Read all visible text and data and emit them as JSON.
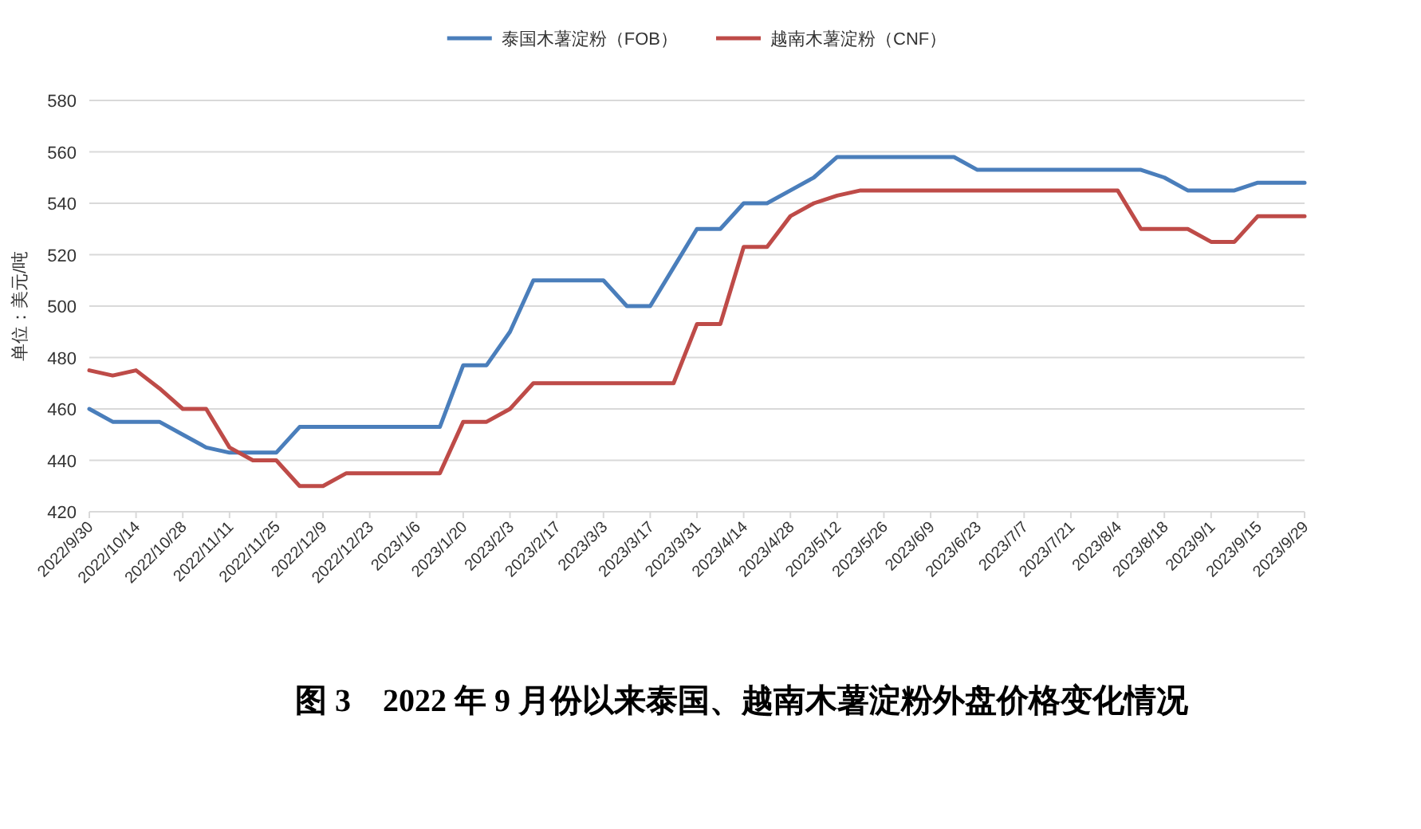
{
  "chart_data": {
    "type": "line",
    "title": "图 3　2022 年 9 月份以来泰国、越南木薯淀粉外盘价格变化情况",
    "ylabel": "单位：美元/吨",
    "categories": [
      "2022/9/30",
      null,
      "2022/10/14",
      null,
      "2022/10/28",
      null,
      "2022/11/11",
      null,
      "2022/11/25",
      null,
      "2022/12/9",
      null,
      "2022/12/23",
      null,
      "2023/1/6",
      null,
      "2023/1/20",
      null,
      "2023/2/3",
      null,
      "2023/2/17",
      null,
      "2023/3/3",
      null,
      "2023/3/17",
      null,
      "2023/3/31",
      null,
      "2023/4/14",
      null,
      "2023/4/28",
      null,
      "2023/5/12",
      null,
      "2023/5/26",
      null,
      "2023/6/9",
      null,
      "2023/6/23",
      null,
      "2023/7/7",
      null,
      "2023/7/21",
      null,
      "2023/8/4",
      null,
      "2023/8/18",
      null,
      "2023/9/1",
      null,
      "2023/9/15",
      null,
      "2023/9/29"
    ],
    "series": [
      {
        "name": "泰国木薯淀粉（FOB）",
        "color": "#4a7ebb",
        "values": [
          460,
          455,
          455,
          455,
          450,
          445,
          443,
          443,
          443,
          453,
          453,
          453,
          453,
          453,
          453,
          453,
          477,
          477,
          490,
          510,
          510,
          510,
          510,
          500,
          500,
          515,
          530,
          530,
          540,
          540,
          545,
          550,
          558,
          558,
          558,
          558,
          558,
          558,
          553,
          553,
          553,
          553,
          553,
          553,
          553,
          553,
          550,
          545,
          545,
          545,
          548,
          548,
          548
        ]
      },
      {
        "name": "越南木薯淀粉（CNF）",
        "color": "#be4b48",
        "values": [
          475,
          473,
          475,
          468,
          460,
          460,
          445,
          440,
          440,
          430,
          430,
          435,
          435,
          435,
          435,
          435,
          455,
          455,
          460,
          470,
          470,
          470,
          470,
          470,
          470,
          470,
          493,
          493,
          523,
          523,
          535,
          540,
          543,
          545,
          545,
          545,
          545,
          545,
          545,
          545,
          545,
          545,
          545,
          545,
          545,
          530,
          530,
          530,
          525,
          525,
          535,
          535,
          535
        ]
      }
    ],
    "ylim": [
      420,
      580
    ],
    "yticks": [
      420,
      440,
      460,
      480,
      500,
      520,
      540,
      560,
      580
    ],
    "grid": "y",
    "legend": "top",
    "marker": "none",
    "line_style": "solid"
  }
}
